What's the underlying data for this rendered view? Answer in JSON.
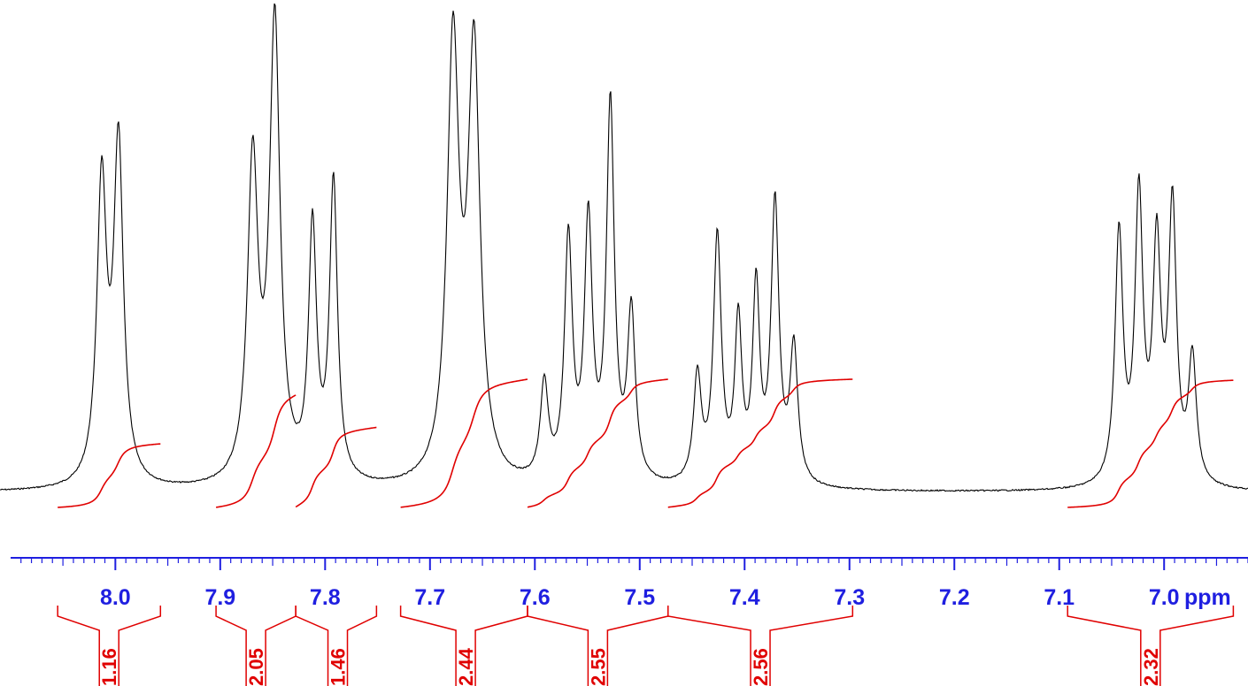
{
  "chart_data": {
    "type": "line",
    "title": "",
    "xlabel": "ppm",
    "ylabel": "",
    "xlim": [
      8.11,
      6.92
    ],
    "x_reversed": true,
    "tick_labels": [
      "8.0",
      "7.9",
      "7.8",
      "7.7",
      "7.6",
      "7.5",
      "7.4",
      "7.3",
      "7.2",
      "7.1",
      "7.0"
    ],
    "colors": {
      "spectrum": "#000000",
      "axis": "#1f1fe0",
      "integral": "#e00000"
    },
    "series": [
      {
        "type": "spectrum",
        "peaks": [
          {
            "ppm": 8.013,
            "height": 0.62,
            "width": 0.0055
          },
          {
            "ppm": 7.997,
            "height": 0.7,
            "width": 0.0055
          },
          {
            "ppm": 7.869,
            "height": 0.66,
            "width": 0.006
          },
          {
            "ppm": 7.848,
            "height": 0.95,
            "width": 0.006
          },
          {
            "ppm": 7.812,
            "height": 0.52,
            "width": 0.0045
          },
          {
            "ppm": 7.792,
            "height": 0.62,
            "width": 0.0045
          },
          {
            "ppm": 7.678,
            "height": 0.9,
            "width": 0.0068
          },
          {
            "ppm": 7.658,
            "height": 0.88,
            "width": 0.0068
          },
          {
            "ppm": 7.591,
            "height": 0.2,
            "width": 0.0045
          },
          {
            "ppm": 7.568,
            "height": 0.5,
            "width": 0.0045
          },
          {
            "ppm": 7.549,
            "height": 0.53,
            "width": 0.0045
          },
          {
            "ppm": 7.528,
            "height": 0.78,
            "width": 0.0045
          },
          {
            "ppm": 7.508,
            "height": 0.35,
            "width": 0.0045
          },
          {
            "ppm": 7.445,
            "height": 0.22,
            "width": 0.0045
          },
          {
            "ppm": 7.426,
            "height": 0.51,
            "width": 0.0045
          },
          {
            "ppm": 7.406,
            "height": 0.33,
            "width": 0.004
          },
          {
            "ppm": 7.389,
            "height": 0.4,
            "width": 0.004
          },
          {
            "ppm": 7.371,
            "height": 0.58,
            "width": 0.0045
          },
          {
            "ppm": 7.353,
            "height": 0.28,
            "width": 0.0045
          },
          {
            "ppm": 7.043,
            "height": 0.52,
            "width": 0.0045
          },
          {
            "ppm": 7.024,
            "height": 0.59,
            "width": 0.0045
          },
          {
            "ppm": 7.007,
            "height": 0.48,
            "width": 0.0045
          },
          {
            "ppm": 6.992,
            "height": 0.57,
            "width": 0.0045
          },
          {
            "ppm": 6.973,
            "height": 0.26,
            "width": 0.0045
          }
        ]
      }
    ],
    "integrals": [
      {
        "from": 8.055,
        "to": 7.957,
        "value": "1.16",
        "label_ppm": 8.006
      },
      {
        "from": 7.904,
        "to": 7.828,
        "value": "2.05",
        "label_ppm": 7.866
      },
      {
        "from": 7.828,
        "to": 7.751,
        "value": "1.46",
        "label_ppm": 7.788
      },
      {
        "from": 7.728,
        "to": 7.607,
        "value": "2.44",
        "label_ppm": 7.666
      },
      {
        "from": 7.607,
        "to": 7.473,
        "value": "2.55",
        "label_ppm": 7.54
      },
      {
        "from": 7.473,
        "to": 7.297,
        "value": "2.56",
        "label_ppm": 7.385
      },
      {
        "from": 7.092,
        "to": 6.934,
        "value": "2.32",
        "label_ppm": 7.013
      }
    ]
  }
}
